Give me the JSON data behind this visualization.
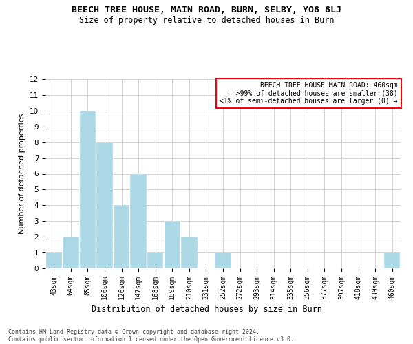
{
  "title": "BEECH TREE HOUSE, MAIN ROAD, BURN, SELBY, YO8 8LJ",
  "subtitle": "Size of property relative to detached houses in Burn",
  "xlabel": "Distribution of detached houses by size in Burn",
  "ylabel": "Number of detached properties",
  "bin_labels": [
    "43sqm",
    "64sqm",
    "85sqm",
    "106sqm",
    "126sqm",
    "147sqm",
    "168sqm",
    "189sqm",
    "210sqm",
    "231sqm",
    "252sqm",
    "272sqm",
    "293sqm",
    "314sqm",
    "335sqm",
    "356sqm",
    "377sqm",
    "397sqm",
    "418sqm",
    "439sqm",
    "460sqm"
  ],
  "bar_heights": [
    1,
    2,
    10,
    8,
    4,
    6,
    1,
    3,
    2,
    0,
    1,
    0,
    0,
    0,
    0,
    0,
    0,
    0,
    0,
    0,
    1
  ],
  "bar_color": "#add8e6",
  "ylim": [
    0,
    12
  ],
  "yticks": [
    0,
    1,
    2,
    3,
    4,
    5,
    6,
    7,
    8,
    9,
    10,
    11,
    12
  ],
  "annotation_title": "BEECH TREE HOUSE MAIN ROAD: 460sqm",
  "annotation_line2": "← >99% of detached houses are smaller (38)",
  "annotation_line3": "<1% of semi-detached houses are larger (0) →",
  "annotation_box_color": "#ff0000",
  "footnote1": "Contains HM Land Registry data © Crown copyright and database right 2024.",
  "footnote2": "Contains public sector information licensed under the Open Government Licence v3.0.",
  "grid_color": "#cccccc",
  "background_color": "#ffffff"
}
